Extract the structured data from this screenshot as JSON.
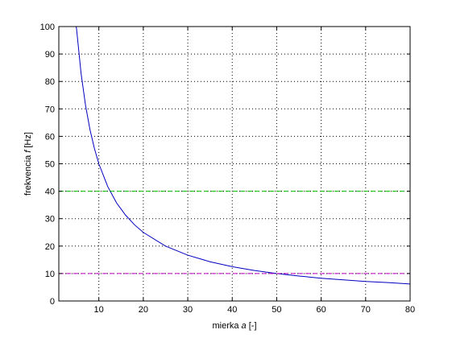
{
  "chart_data": {
    "type": "line",
    "title": "",
    "xlabel": {
      "prefix": "mierka ",
      "var": "a",
      "suffix": " [-]"
    },
    "ylabel": {
      "prefix": "frekvencia ",
      "var": "f",
      "suffix": " [Hz]"
    },
    "xlim": [
      1,
      80
    ],
    "ylim": [
      0,
      100
    ],
    "xticks": [
      10,
      20,
      30,
      40,
      50,
      60,
      70,
      80
    ],
    "yticks": [
      0,
      10,
      20,
      30,
      40,
      50,
      60,
      70,
      80,
      90,
      100
    ],
    "grid": true,
    "series": [
      {
        "color": "#0000c0",
        "style": "solid",
        "x": [
          4.9,
          5,
          6,
          7,
          8,
          9,
          10,
          12,
          14,
          16,
          18,
          20,
          25,
          30,
          35,
          40,
          45,
          50,
          55,
          60,
          65,
          70,
          75,
          80
        ],
        "y": [
          100,
          99,
          83,
          71.4,
          62.5,
          55.6,
          50,
          41.7,
          35.7,
          31.3,
          27.8,
          25,
          20,
          16.7,
          14.3,
          12.5,
          11.1,
          10,
          9.1,
          8.3,
          7.7,
          7.1,
          6.7,
          6.2
        ]
      },
      {
        "color": "#00c000",
        "style": "dashed",
        "x": [
          1,
          80
        ],
        "y": [
          40,
          40
        ]
      },
      {
        "color": "#c000c0",
        "style": "dashed",
        "x": [
          1,
          80
        ],
        "y": [
          10,
          10
        ]
      }
    ]
  }
}
